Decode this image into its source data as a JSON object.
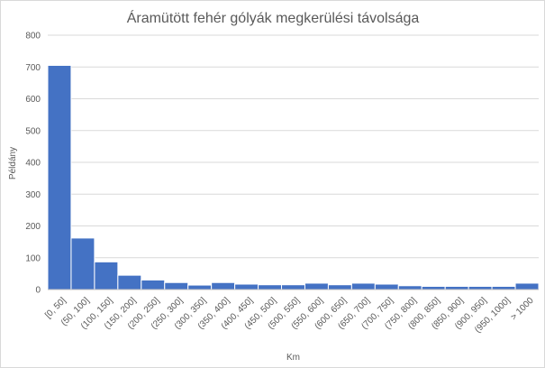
{
  "chart_data": {
    "type": "bar",
    "title": "Áramütött fehér gólyák megkerülési távolsága",
    "xlabel": "Km",
    "ylabel": "Példány",
    "ylim": [
      0,
      800
    ],
    "yticks": [
      0,
      100,
      200,
      300,
      400,
      500,
      600,
      700,
      800
    ],
    "grid": true,
    "bar_color": "#4472c4",
    "categories": [
      "[0, 50]",
      "(50, 100]",
      "(100, 150]",
      "(150, 200]",
      "(200, 250]",
      "(250, 300]",
      "(300, 350]",
      "(350, 400]",
      "(400, 450]",
      "(450, 500]",
      "(500, 550]",
      "(550, 600]",
      "(600, 650]",
      "(650, 700]",
      "(700, 750]",
      "(750, 800]",
      "(800, 850]",
      "(850, 900]",
      "(900, 950]",
      "(950, 1000]",
      "> 1000"
    ],
    "values": [
      705,
      162,
      87,
      45,
      30,
      22,
      14,
      22,
      17,
      15,
      15,
      20,
      15,
      20,
      17,
      12,
      10,
      10,
      10,
      10,
      20
    ]
  }
}
